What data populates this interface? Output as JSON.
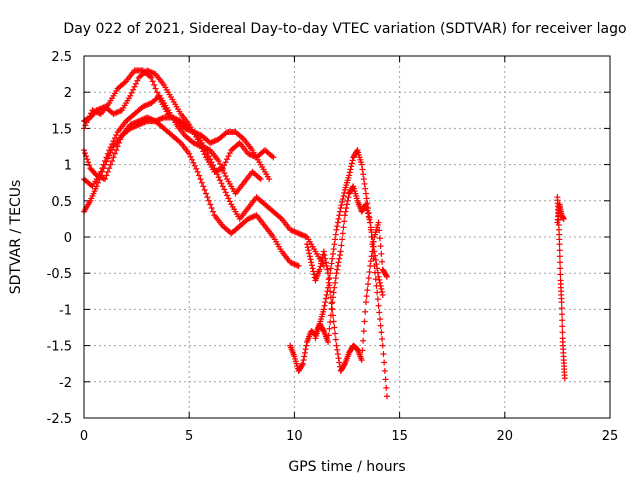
{
  "chart_data": {
    "type": "scatter",
    "title": "Day 022 of 2021, Sidereal Day-to-day VTEC variation (SDTVAR) for receiver lago",
    "xlabel": "GPS time / hours",
    "ylabel": "SDTVAR / TECUs",
    "xlim": [
      0,
      25
    ],
    "ylim": [
      -2.5,
      2.5
    ],
    "xticks": [
      "0",
      "5",
      "10",
      "15",
      "20",
      "25"
    ],
    "yticks": [
      "2.5",
      "2",
      "1.5",
      "1",
      "0.5",
      "0",
      "-0.5",
      "-1",
      "-1.5",
      "-2",
      "-2.5"
    ],
    "grid": true,
    "marker": "+",
    "color": "#ff0000",
    "series": [
      {
        "name": "track-1",
        "x": [
          0,
          0.4,
          0.8,
          1.2,
          1.6,
          2.0,
          2.4,
          2.8,
          3.2,
          3.6,
          4.0,
          4.4,
          4.8,
          5.2,
          5.6,
          6.0,
          6.4,
          6.8,
          7.2,
          7.6,
          8.0,
          8.4,
          8.8
        ],
        "y": [
          1.5,
          1.75,
          1.7,
          1.85,
          2.05,
          2.15,
          2.3,
          2.3,
          2.2,
          1.9,
          1.7,
          1.6,
          1.5,
          1.45,
          1.4,
          1.3,
          1.35,
          1.45,
          1.45,
          1.35,
          1.2,
          1.0,
          0.8
        ]
      },
      {
        "name": "track-2",
        "x": [
          0,
          0.3,
          0.6,
          1.0,
          1.4,
          1.8,
          2.2,
          2.6,
          3.0,
          3.4,
          3.8,
          4.2,
          4.6,
          5.0,
          5.4,
          5.8,
          6.2,
          6.6,
          7.0,
          7.4,
          7.8,
          8.2,
          8.6,
          9.0
        ],
        "y": [
          1.6,
          1.65,
          1.75,
          1.8,
          1.7,
          1.75,
          1.95,
          2.2,
          2.3,
          2.25,
          2.1,
          1.9,
          1.7,
          1.55,
          1.35,
          1.1,
          0.9,
          0.95,
          1.2,
          1.3,
          1.15,
          1.1,
          1.2,
          1.1
        ]
      },
      {
        "name": "track-3",
        "x": [
          0,
          0.4,
          0.8,
          1.2,
          1.6,
          2.0,
          2.4,
          2.8,
          3.2,
          3.6,
          4.0,
          4.4,
          4.8,
          5.2,
          5.6,
          6.0,
          6.4,
          6.8,
          7.2,
          7.6,
          8.0,
          8.4
        ],
        "y": [
          0.8,
          0.7,
          0.9,
          1.2,
          1.45,
          1.6,
          1.7,
          1.8,
          1.85,
          1.95,
          1.75,
          1.55,
          1.4,
          1.3,
          1.25,
          1.2,
          1.05,
          0.8,
          0.6,
          0.75,
          0.9,
          0.8
        ]
      },
      {
        "name": "track-4",
        "x": [
          0,
          0.3,
          0.6,
          1.0,
          1.4,
          1.8,
          2.2,
          2.6,
          3.0,
          3.4,
          3.8,
          4.2,
          4.6,
          5.0,
          5.4,
          5.8,
          6.2,
          6.6,
          7.0,
          7.4,
          7.8,
          8.2,
          8.6,
          9.0,
          9.4,
          9.8,
          10.2
        ],
        "y": [
          1.2,
          0.95,
          0.85,
          0.8,
          1.1,
          1.4,
          1.55,
          1.6,
          1.65,
          1.6,
          1.5,
          1.4,
          1.3,
          1.15,
          0.9,
          0.6,
          0.3,
          0.15,
          0.05,
          0.15,
          0.25,
          0.3,
          0.15,
          0.0,
          -0.2,
          -0.35,
          -0.4
        ]
      },
      {
        "name": "track-5",
        "x": [
          0,
          0.3,
          0.6,
          1.0,
          1.4,
          1.8,
          2.2,
          2.6,
          3.0,
          3.4,
          3.8,
          4.2,
          4.6,
          5.0,
          5.4,
          5.8,
          6.2,
          6.6,
          7.0,
          7.4,
          7.8,
          8.2,
          8.6,
          9.0,
          9.4,
          9.8,
          10.2,
          10.6,
          11.0,
          11.4
        ],
        "y": [
          0.35,
          0.5,
          0.7,
          1.0,
          1.25,
          1.4,
          1.5,
          1.55,
          1.6,
          1.6,
          1.65,
          1.65,
          1.6,
          1.5,
          1.4,
          1.2,
          0.95,
          0.7,
          0.45,
          0.25,
          0.4,
          0.55,
          0.45,
          0.35,
          0.25,
          0.1,
          0.05,
          0.0,
          -0.2,
          -0.4
        ]
      },
      {
        "name": "track-6",
        "x": [
          9.8,
          10.0,
          10.2,
          10.4,
          10.6,
          10.8,
          11.0,
          11.2,
          11.4,
          11.6,
          11.8,
          12.0,
          12.2,
          12.4,
          12.6,
          12.8,
          13.0,
          13.2,
          13.4,
          13.6,
          13.8,
          14.0,
          14.2,
          14.4
        ],
        "y": [
          -1.5,
          -1.65,
          -1.85,
          -1.75,
          -1.45,
          -1.3,
          -1.35,
          -1.2,
          -1.0,
          -0.7,
          -0.3,
          0.1,
          0.4,
          0.65,
          0.85,
          1.1,
          1.2,
          1.0,
          0.6,
          0.2,
          -0.4,
          -0.95,
          -1.5,
          -2.2
        ]
      },
      {
        "name": "track-7",
        "x": [
          10.6,
          10.8,
          11.0,
          11.2,
          11.4,
          11.6,
          11.8,
          12.0,
          12.2,
          12.4,
          12.6,
          12.8,
          13.0,
          13.2,
          13.4,
          13.6,
          13.8,
          14.0,
          14.2,
          14.4
        ],
        "y": [
          -0.1,
          -0.35,
          -0.6,
          -0.45,
          -0.2,
          -0.5,
          -1.0,
          -1.5,
          -1.85,
          -1.75,
          -1.6,
          -1.5,
          -1.55,
          -1.7,
          -0.9,
          -0.4,
          0.0,
          0.2,
          -0.45,
          -0.55
        ]
      },
      {
        "name": "track-8",
        "x": [
          11.0,
          11.2,
          11.4,
          11.6,
          11.8,
          12.0,
          12.2,
          12.4,
          12.6,
          12.8,
          13.0,
          13.2,
          13.4,
          13.6,
          13.8,
          14.0,
          14.2
        ],
        "y": [
          -1.4,
          -1.2,
          -1.3,
          -1.45,
          -0.9,
          -0.5,
          -0.2,
          0.3,
          0.6,
          0.7,
          0.5,
          0.35,
          0.45,
          0.2,
          -0.2,
          -0.55,
          -0.8
        ]
      },
      {
        "name": "track-9",
        "x": [
          22.5,
          22.55,
          22.6,
          22.65,
          22.7,
          22.75,
          22.8,
          22.85
        ],
        "y": [
          0.55,
          0.3,
          -0.1,
          -0.6,
          -0.9,
          -1.4,
          -1.7,
          -1.95
        ]
      },
      {
        "name": "track-10",
        "x": [
          22.5,
          22.6,
          22.7,
          22.8
        ],
        "y": [
          0.2,
          0.45,
          0.3,
          0.25
        ]
      }
    ]
  }
}
